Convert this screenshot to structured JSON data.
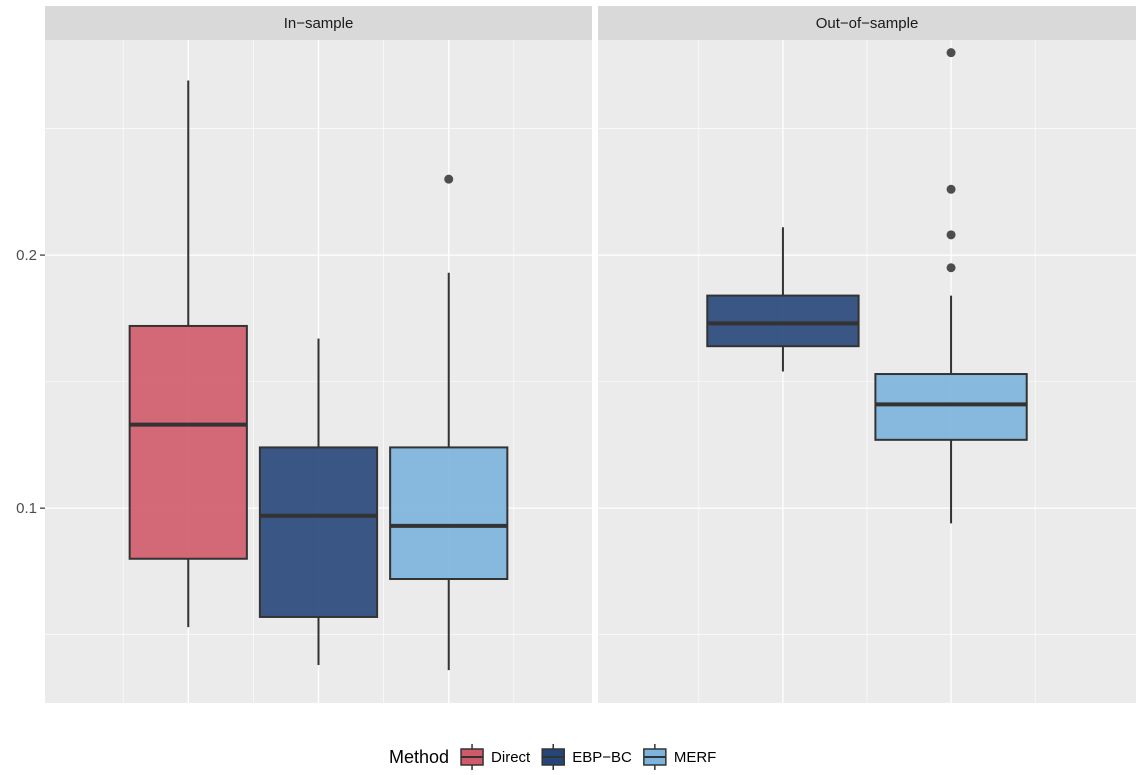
{
  "chart_data": {
    "type": "boxplot",
    "y_axis": {
      "ticks": [
        0.1,
        0.2
      ],
      "tick_labels": [
        "0.1",
        "0.2"
      ],
      "ylim": [
        0.023,
        0.285
      ]
    },
    "panels": [
      {
        "title": "In−sample",
        "boxes": [
          {
            "method": "Direct",
            "lower_whisker": 0.053,
            "q1": 0.08,
            "median": 0.133,
            "q3": 0.172,
            "upper_whisker": 0.269,
            "outliers": []
          },
          {
            "method": "EBP−BC",
            "lower_whisker": 0.038,
            "q1": 0.057,
            "median": 0.097,
            "q3": 0.124,
            "upper_whisker": 0.167,
            "outliers": []
          },
          {
            "method": "MERF",
            "lower_whisker": 0.036,
            "q1": 0.072,
            "median": 0.093,
            "q3": 0.124,
            "upper_whisker": 0.193,
            "outliers": [
              0.23
            ]
          }
        ]
      },
      {
        "title": "Out−of−sample",
        "boxes": [
          {
            "method": "EBP−BC",
            "lower_whisker": 0.154,
            "q1": 0.164,
            "median": 0.173,
            "q3": 0.184,
            "upper_whisker": 0.211,
            "outliers": []
          },
          {
            "method": "MERF",
            "lower_whisker": 0.094,
            "q1": 0.127,
            "median": 0.141,
            "q3": 0.153,
            "upper_whisker": 0.184,
            "outliers": [
              0.195,
              0.208,
              0.226,
              0.28
            ]
          }
        ]
      }
    ],
    "legend": {
      "title": "Method",
      "position": "bottom",
      "entries": [
        {
          "label": "Direct",
          "color": "#d05a6a"
        },
        {
          "label": "EBP−BC",
          "color": "#26467a"
        },
        {
          "label": "MERF",
          "color": "#7bb4dc"
        }
      ]
    },
    "colors": {
      "panel_background": "#ebebeb",
      "strip_background": "#d9d9d9",
      "gridline": "#ffffff",
      "box_outline": "#333333",
      "outlier": "#4d4d4d"
    }
  }
}
